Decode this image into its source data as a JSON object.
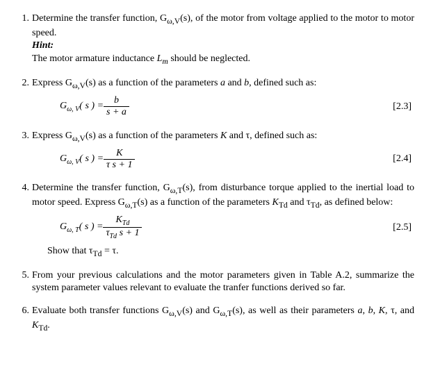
{
  "items": [
    {
      "num": "1.",
      "text": "Determine the transfer function, G<sub>ω,V</sub>(s), of the motor from voltage applied to the motor to motor speed.",
      "hint_label": "Hint:",
      "hint_text": "The motor armature inductance <span class='ital'>L<sub>m</sub></span> should be neglected."
    },
    {
      "num": "2.",
      "text": "Express G<sub>ω,V</sub>(s) as a function of the parameters <span class='ital'>a</span> and <span class='ital'>b</span>, defined such as:",
      "eq_lhs": "G<sub class='sub'>ω, V</sub>( s ) = ",
      "eq_top": "b",
      "eq_bot": "s + a",
      "eq_num": "[2.3]"
    },
    {
      "num": "3.",
      "text": "Express G<sub>ω,V</sub>(s) as a function of the parameters <span class='ital'>K</span> and τ, defined such as:",
      "eq_lhs": "G<sub class='sub'>ω, V</sub>( s ) = ",
      "eq_top": "K",
      "eq_bot": "τ s + 1",
      "eq_num": "[2.4]"
    },
    {
      "num": "4.",
      "text": "Determine the transfer function, G<sub>ω,T</sub>(s), from disturbance torque applied to the inertial load to motor speed. Express G<sub>ω,T</sub>(s) as a function of the parameters <span class='ital'>K</span><sub>Td</sub> and τ<sub>Td</sub>, as defined below:",
      "eq_lhs": "G<sub class='sub'>ω, T</sub>( s ) = ",
      "eq_top": "K<sub class='sub'>Td</sub>",
      "eq_bot": "τ<sub class='sub'>Td</sub> s + 1",
      "eq_num": "[2.5]",
      "tail": "Show that τ<sub>Td</sub> = τ."
    },
    {
      "num": "5.",
      "text": "From your previous calculations and the motor parameters given in Table A.2, summarize the system parameter values relevant to evaluate the tranfer functions derived so far."
    },
    {
      "num": "6.",
      "text": "Evaluate both transfer functions G<sub>ω,V</sub>(s) and G<sub>ω,T</sub>(s), as well as their parameters <span class='ital'>a</span>, <span class='ital'>b</span>, <span class='ital'>K</span>, τ, and <span class='ital'>K</span><sub>Td</sub>."
    }
  ],
  "style": {
    "font_family": "Times New Roman",
    "font_size_pt": 11,
    "background": "#ffffff",
    "text_color": "#000000"
  }
}
